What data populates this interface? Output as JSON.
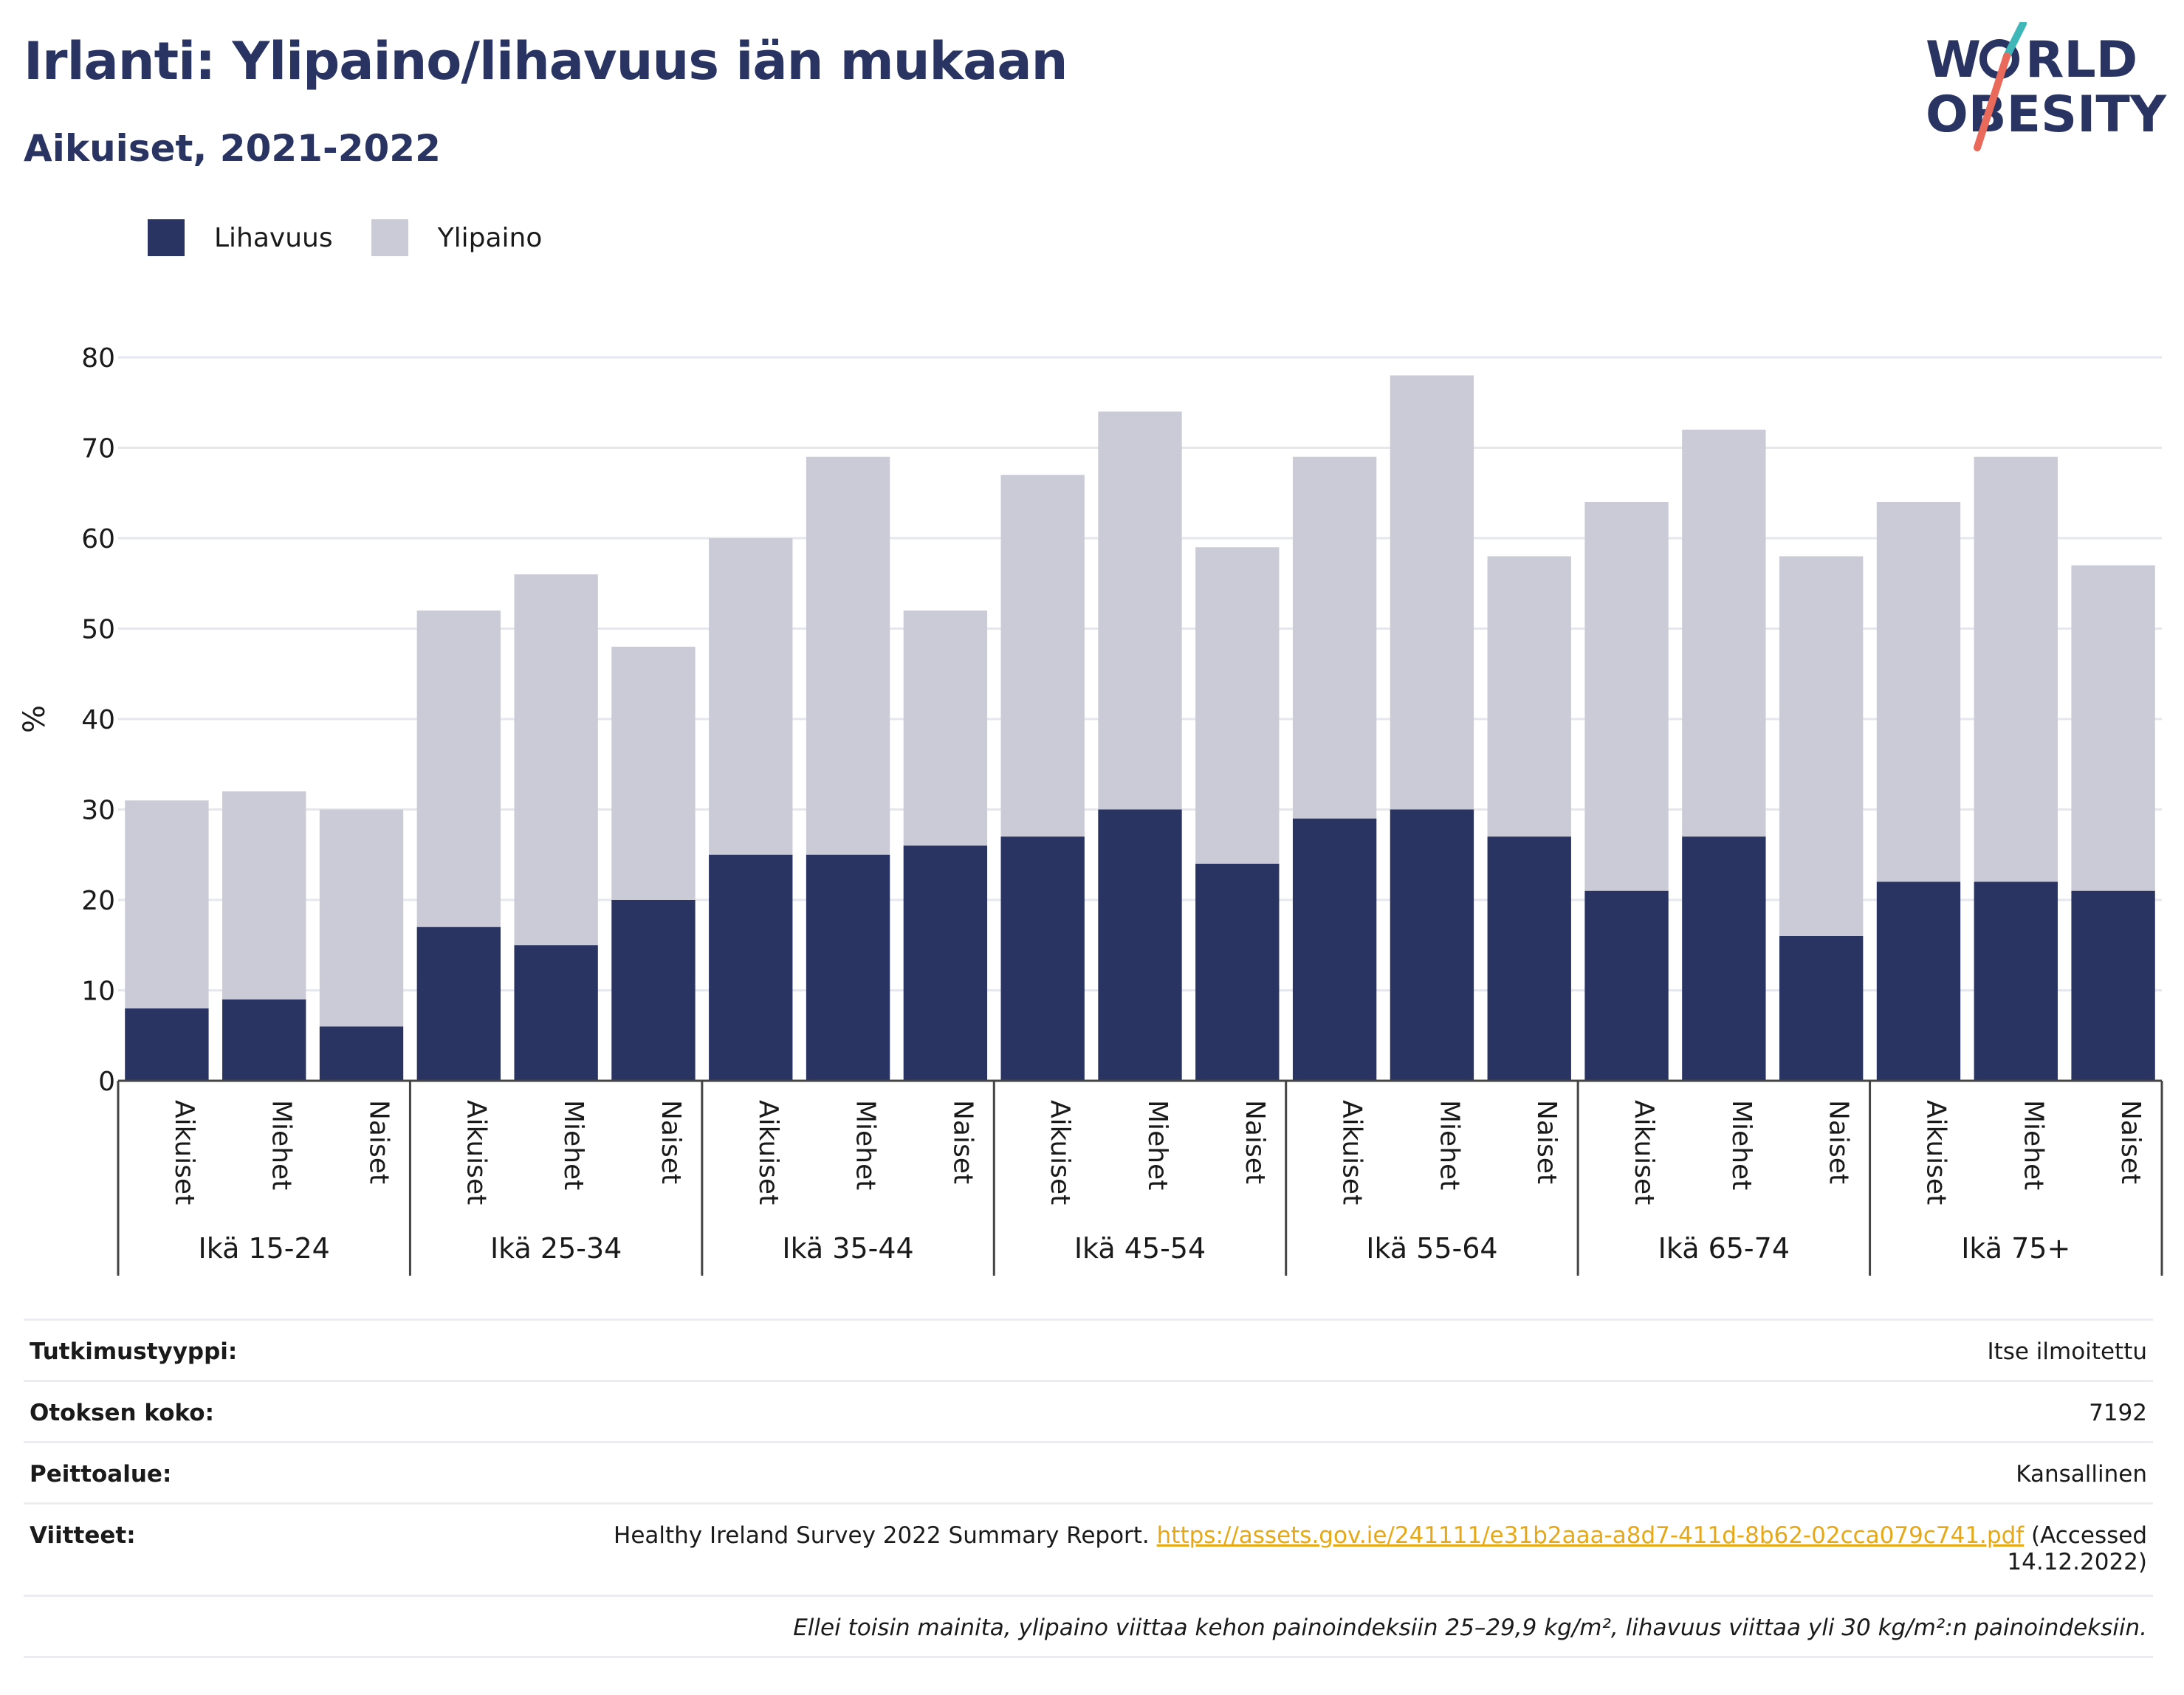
{
  "title": "Irlanti: Ylipaino/lihavuus iän mukaan",
  "subtitle": "Aikuiset, 2021-2022",
  "logo": {
    "line1": "W RLD",
    "line1_full": "WORLD",
    "line2": "OBESITY"
  },
  "colors": {
    "obesity": "#293462",
    "overweight": "#cacbd6",
    "title": "#293462",
    "link": "#e6a817",
    "logo_teal": "#3fb6b8",
    "logo_coral": "#e9695a"
  },
  "legend": {
    "obesity": "Lihavuus",
    "overweight": "Ylipaino"
  },
  "chart_data": {
    "type": "bar",
    "stacked": true,
    "ylabel": "%",
    "ylim": [
      0,
      80
    ],
    "yticks": [
      0,
      10,
      20,
      30,
      40,
      50,
      60,
      70,
      80
    ],
    "grid": true,
    "legend_position": "top-left",
    "groups": [
      "Ikä 15-24",
      "Ikä 25-34",
      "Ikä 35-44",
      "Ikä 45-54",
      "Ikä 55-64",
      "Ikä 65-74",
      "Ikä 75+"
    ],
    "subcategories": [
      "Aikuiset",
      "Miehet",
      "Naiset"
    ],
    "series": [
      {
        "name": "Lihavuus",
        "values": [
          8,
          9,
          6,
          17,
          15,
          20,
          25,
          25,
          26,
          27,
          30,
          24,
          29,
          30,
          27,
          21,
          27,
          16,
          22,
          22,
          21
        ]
      },
      {
        "name": "Ylipaino",
        "values": [
          23,
          23,
          24,
          35,
          41,
          28,
          35,
          44,
          26,
          40,
          44,
          35,
          40,
          48,
          31,
          43,
          45,
          42,
          42,
          47,
          36
        ]
      }
    ]
  },
  "info": {
    "study_type_label": "Tutkimustyyppi:",
    "study_type_value": "Itse ilmoitettu",
    "sample_label": "Otoksen koko:",
    "sample_value": "7192",
    "coverage_label": "Peittoalue:",
    "coverage_value": "Kansallinen",
    "references_label": "Viitteet:",
    "reference_text": "Healthy Ireland Survey 2022 Summary Report.",
    "reference_url": "https://assets.gov.ie/241111/e31b2aaa-a8d7-411d-8b62-02cca079c741.pdf",
    "reference_accessed_1": "(Accessed",
    "reference_accessed_2": "14.12.2022)",
    "note": "Ellei toisin mainita, ylipaino viittaa kehon painoindeksiin 25–29,9 kg/m², lihavuus viittaa yli 30 kg/m²:n painoindeksiin."
  }
}
